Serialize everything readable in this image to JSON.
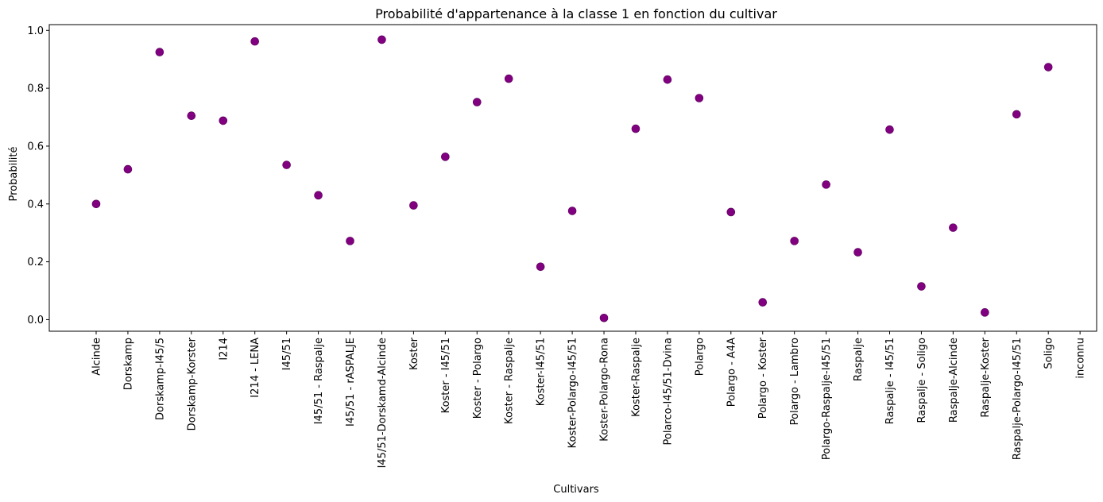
{
  "chart_data": {
    "type": "scatter",
    "title": "Probabilité d'appartenance à la classe 1 en fonction du cultivar",
    "xlabel": "Cultivars",
    "ylabel": "Probabilité",
    "ylim": [
      -0.04,
      1.02
    ],
    "yticks": [
      "0.0",
      "0.2",
      "0.4",
      "0.6",
      "0.8",
      "1.0"
    ],
    "grid": false,
    "marker_color": "#800080",
    "categories": [
      "Alcinde",
      "Dorskamp",
      "Dorskamp-I45/5",
      "Dorskamp-Korster",
      "I214",
      "I214 - LENA",
      "I45/51",
      "I45/51 - Raspalje",
      "I45/51 - rASPALJE",
      "I45/51-Dorskamd-Alcinde",
      "Koster",
      "Koster - I45/51",
      "Koster - Polargo",
      "Koster - Raspalje",
      "Koster-I45/51",
      "Koster-Polargo-I45/51",
      "Koster-Polargo-Rona",
      "Koster-Raspalje",
      "Polarco-I45/51-Dvina",
      "Polargo",
      "Polargo - A4A",
      "Polargo - Koster",
      "Polargo - Lambro",
      "Polargo-Raspalje-I45/51",
      "Raspalje",
      "Raspalje - I45/51",
      "Raspalje - Soligo",
      "Raspalje-Alcinde",
      "Raspalje-Koster",
      "Raspalje-Polargo-I45/51",
      "Soligo",
      "inconnu"
    ],
    "values": [
      0.4,
      0.52,
      0.925,
      0.705,
      0.688,
      0.962,
      0.535,
      0.43,
      0.272,
      0.968,
      0.395,
      0.563,
      0.752,
      0.833,
      0.183,
      0.376,
      0.006,
      0.66,
      0.83,
      0.766,
      0.372,
      0.06,
      0.272,
      0.467,
      0.233,
      0.657,
      0.115,
      0.318,
      0.025,
      0.71,
      0.873,
      null
    ]
  }
}
